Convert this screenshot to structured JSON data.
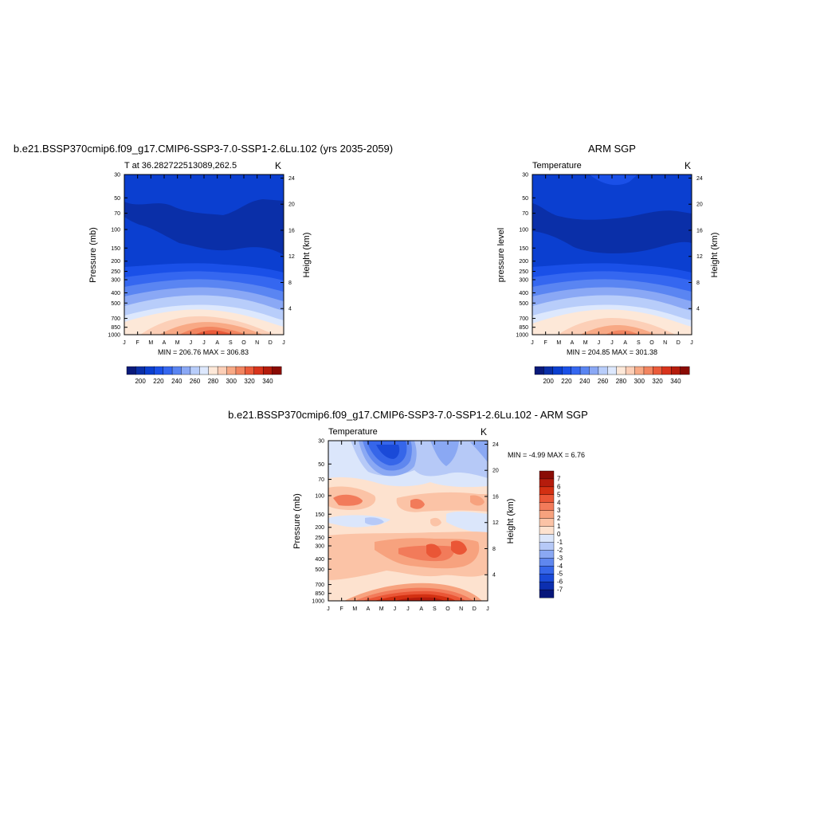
{
  "chart_data": [
    {
      "type": "heatmap",
      "title": "b.e21.BSSP370cmip6.f09_g17.CMIP6-SSP3-7.0-SSP1-2.6Lu.102 (yrs 2035-2059)",
      "subtitle_left": "T at 36.282722513089,262.5",
      "subtitle_right": "K",
      "ylabel": "Pressure (mb)",
      "ylabel_right": "Height (km)",
      "stats": "MIN = 206.76 MAX = 306.83",
      "x_ticks": [
        "J",
        "F",
        "M",
        "A",
        "M",
        "J",
        "J",
        "A",
        "S",
        "O",
        "N",
        "D",
        "J"
      ],
      "y_ticks": [
        30,
        50,
        70,
        100,
        150,
        200,
        250,
        300,
        400,
        500,
        700,
        850,
        1000
      ],
      "y_ticks_right": [
        24,
        20,
        16,
        12,
        8,
        4
      ],
      "colorbar": {
        "levels": [
          195,
          200,
          205,
          210,
          215,
          220,
          225,
          230,
          235,
          240,
          245,
          250,
          255,
          260,
          265,
          270,
          275,
          280,
          285,
          290,
          295,
          300,
          305,
          310,
          315,
          320,
          325,
          330,
          335,
          340,
          345
        ],
        "tick_labels": [
          200,
          220,
          240,
          260,
          280,
          300,
          320,
          340
        ]
      }
    },
    {
      "type": "heatmap",
      "title": "ARM SGP",
      "subtitle_left": "Temperature",
      "subtitle_right": "K",
      "ylabel": "pressure level",
      "ylabel_right": "Height (km)",
      "stats": "MIN = 204.85 MAX = 301.38",
      "x_ticks": [
        "J",
        "F",
        "M",
        "A",
        "M",
        "J",
        "J",
        "A",
        "S",
        "O",
        "N",
        "D",
        "J"
      ],
      "y_ticks": [
        30,
        50,
        70,
        100,
        150,
        200,
        250,
        300,
        400,
        500,
        700,
        850,
        1000
      ],
      "y_ticks_right": [
        24,
        20,
        16,
        12,
        8,
        4
      ],
      "colorbar": {
        "tick_labels": [
          200,
          220,
          240,
          260,
          280,
          300,
          320,
          340
        ]
      }
    },
    {
      "type": "heatmap",
      "title": "b.e21.BSSP370cmip6.f09_g17.CMIP6-SSP3-7.0-SSP1-2.6Lu.102 - ARM SGP",
      "subtitle_left": "Temperature",
      "subtitle_right": "K",
      "ylabel": "Pressure (mb)",
      "ylabel_right": "Height (km)",
      "stats": "MIN =  -4.99 MAX =   6.76",
      "x_ticks": [
        "J",
        "F",
        "M",
        "A",
        "M",
        "J",
        "J",
        "A",
        "S",
        "O",
        "N",
        "D",
        "J"
      ],
      "y_ticks": [
        30,
        50,
        70,
        100,
        150,
        200,
        250,
        300,
        400,
        500,
        700,
        850,
        1000
      ],
      "y_ticks_right": [
        24,
        20,
        16,
        12,
        8,
        4
      ],
      "colorbar": {
        "tick_labels": [
          7,
          6,
          5,
          4,
          3,
          2,
          1,
          0,
          -1,
          -2,
          -3,
          -4,
          -5,
          -6,
          -7
        ]
      }
    }
  ],
  "colors": {
    "temp_scale": [
      "#0a1a7a",
      "#0a2fa8",
      "#0b3fd0",
      "#1a50e8",
      "#3567f0",
      "#5a85f2",
      "#8aa8f5",
      "#b8cdfa",
      "#dde8fd",
      "#fde8d8",
      "#fccfb7",
      "#f8a985",
      "#f28560",
      "#eb5b3a",
      "#d8341c",
      "#b51c0c",
      "#8a0c05"
    ],
    "diff_scale": [
      "#8a0c05",
      "#b51c0c",
      "#d33012",
      "#ea5636",
      "#f27b5a",
      "#f7a27e",
      "#fbc3a6",
      "#fde2cf",
      "#dbe6fb",
      "#b6c9f7",
      "#8aa8f3",
      "#5f87ef",
      "#3666e9",
      "#1a4ad8",
      "#0c2fb0",
      "#07167a"
    ]
  }
}
